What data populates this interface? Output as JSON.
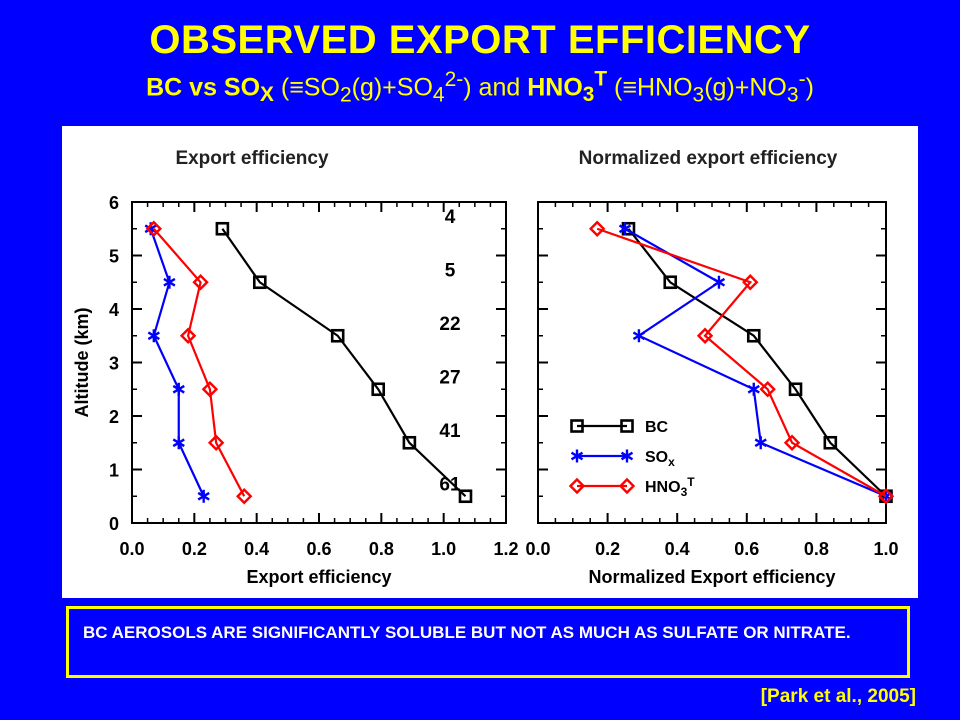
{
  "slide": {
    "title": "OBSERVED EXPORT EFFICIENCY",
    "subtitle": {
      "p1": "BC vs SO",
      "p1_sub": "X",
      "p2": " (≡SO",
      "p2_sub": "2",
      "p3": "(g)+SO",
      "p3_sub": "4",
      "p3_sup": "2-",
      "p4": ") and ",
      "p5": "HNO",
      "p5_sub": "3",
      "p5_sup": "T",
      "p6": " (≡HNO",
      "p6_sub": "3",
      "p7": "(g)+NO",
      "p7_sub": "3",
      "p7_sup": "-",
      "p8": ")"
    },
    "conclusion": "BC AEROSOLS ARE SIGNIFICANTLY SOLUBLE BUT NOT AS MUCH AS SULFATE OR NITRATE.",
    "citation": "[Park et al., 2005]"
  },
  "colors": {
    "BC": "#000000",
    "SOx": "#0000ff",
    "HNO3T": "#ff0000",
    "slide_bg": "#0000ff",
    "title": "#ffff00"
  },
  "chart_data": [
    {
      "type": "line",
      "title": "Export efficiency",
      "xlabel": "Export efficiency",
      "ylabel": "Altitude (km)",
      "xlim": [
        0.0,
        1.2
      ],
      "ylim": [
        0,
        6
      ],
      "xticks": [
        "0.0",
        "0.2",
        "0.4",
        "0.6",
        "0.8",
        "1.0",
        "1.2"
      ],
      "yticks": [
        "0",
        "1",
        "2",
        "3",
        "4",
        "5",
        "6"
      ],
      "annotations": [
        "4",
        "5",
        "22",
        "27",
        "41",
        "61"
      ],
      "annotation_altitudes": [
        5.5,
        4.5,
        3.5,
        2.5,
        1.5,
        0.5
      ],
      "series": [
        {
          "name": "BC",
          "marker": "square",
          "x": [
            1.07,
            0.89,
            0.79,
            0.66,
            0.41,
            0.29
          ],
          "y": [
            0.5,
            1.5,
            2.5,
            3.5,
            4.5,
            5.5
          ]
        },
        {
          "name": "SOx",
          "marker": "asterisk",
          "x": [
            0.23,
            0.15,
            0.15,
            0.07,
            0.12,
            0.06
          ],
          "y": [
            0.5,
            1.5,
            2.5,
            3.5,
            4.5,
            5.5
          ]
        },
        {
          "name": "HNO3T",
          "marker": "diamond",
          "x": [
            0.36,
            0.27,
            0.25,
            0.18,
            0.22,
            0.07
          ],
          "y": [
            0.5,
            1.5,
            2.5,
            3.5,
            4.5,
            5.5
          ]
        }
      ]
    },
    {
      "type": "line",
      "title": "Normalized export efficiency",
      "xlabel": "Normalized Export efficiency",
      "xlim": [
        0.0,
        1.0
      ],
      "ylim": [
        0,
        6
      ],
      "xticks": [
        "0.0",
        "0.2",
        "0.4",
        "0.6",
        "0.8",
        "1.0"
      ],
      "legend": [
        "BC",
        "SO",
        "HNO"
      ],
      "legend_sub": [
        "",
        "x",
        "3"
      ],
      "legend_sup": [
        "",
        "",
        "T"
      ],
      "legend_position": "lower-left",
      "series": [
        {
          "name": "BC",
          "marker": "square",
          "x": [
            1.0,
            0.84,
            0.74,
            0.62,
            0.38,
            0.26
          ],
          "y": [
            0.5,
            1.5,
            2.5,
            3.5,
            4.5,
            5.5
          ]
        },
        {
          "name": "SOx",
          "marker": "asterisk",
          "x": [
            1.0,
            0.64,
            0.62,
            0.29,
            0.52,
            0.25
          ],
          "y": [
            0.5,
            1.5,
            2.5,
            3.5,
            4.5,
            5.5
          ]
        },
        {
          "name": "HNO3T",
          "marker": "diamond",
          "x": [
            1.0,
            0.73,
            0.66,
            0.48,
            0.61,
            0.17
          ],
          "y": [
            0.5,
            1.5,
            2.5,
            3.5,
            4.5,
            5.5
          ]
        }
      ]
    }
  ]
}
